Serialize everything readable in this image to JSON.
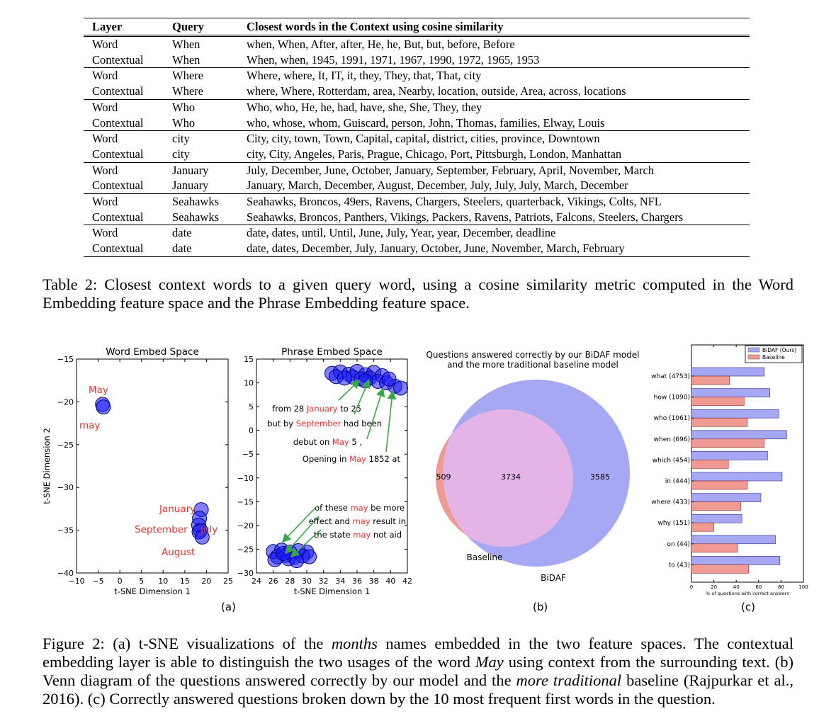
{
  "table": {
    "headers": [
      "Layer",
      "Query",
      "Closest words in the Context using cosine similarity"
    ],
    "groups": [
      [
        [
          "Word",
          "When",
          "when, When, After, after, He, he, But, but, before, Before"
        ],
        [
          "Contextual",
          "When",
          "When, when, 1945, 1991, 1971, 1967, 1990, 1972, 1965, 1953"
        ]
      ],
      [
        [
          "Word",
          "Where",
          "Where, where, It, IT, it, they, They, that, That, city"
        ],
        [
          "Contextual",
          "Where",
          "where, Where, Rotterdam, area, Nearby, location, outside, Area, across, locations"
        ]
      ],
      [
        [
          "Word",
          "Who",
          "Who, who, He, he, had, have, she, She, They, they"
        ],
        [
          "Contextual",
          "Who",
          "who, whose, whom, Guiscard, person, John, Thomas, families, Elway, Louis"
        ]
      ],
      [
        [
          "Word",
          "city",
          "City, city, town, Town, Capital, capital, district, cities, province, Downtown"
        ],
        [
          "Contextual",
          "city",
          "city, City, Angeles, Paris, Prague, Chicago, Port, Pittsburgh, London, Manhattan"
        ]
      ],
      [
        [
          "Word",
          "January",
          "July, December, June, October, January, September, February, April, November, March"
        ],
        [
          "Contextual",
          "January",
          "January, March, December, August, December, July, July, July, March, December"
        ]
      ],
      [
        [
          "Word",
          "Seahawks",
          "Seahawks, Broncos, 49ers, Ravens, Chargers, Steelers, quarterback, Vikings, Colts, NFL"
        ],
        [
          "Contextual",
          "Seahawks",
          "Seahawks, Broncos, Panthers, Vikings, Packers, Ravens, Patriots, Falcons, Steelers, Chargers"
        ]
      ],
      [
        [
          "Word",
          "date",
          "date, dates, until, Until, June, July, Year, year, December, deadline"
        ],
        [
          "Contextual",
          "date",
          "date, dates, December, July, January, October, June, November, March, February"
        ]
      ]
    ]
  },
  "table_caption": {
    "label": "Table 2:",
    "text": "Closest context words to a given query word, using a cosine similarity metric computed in the Word Embedding feature space and the Phrase Embedding feature space."
  },
  "chart_data": [
    {
      "type": "scatter",
      "title": "Word Embed Space",
      "xlabel": "t-SNE Dimension 1",
      "ylabel": "t-SNE Dimension 2",
      "xlim": [
        -10,
        25
      ],
      "ylim": [
        -40,
        -15
      ],
      "xticks": [
        "−10",
        "−5",
        "0",
        "5",
        "10",
        "15",
        "20",
        "25"
      ],
      "yticks": [
        "−15",
        "−20",
        "−25",
        "−30",
        "−35",
        "−40"
      ],
      "points": [
        {
          "x": -4,
          "y": -20.3
        },
        {
          "x": -3.8,
          "y": -20.6
        },
        {
          "x": 18.8,
          "y": -32.6
        },
        {
          "x": 18.4,
          "y": -33.6
        },
        {
          "x": 18.2,
          "y": -34.4
        },
        {
          "x": 18.6,
          "y": -35.0
        },
        {
          "x": 18.3,
          "y": -35.2
        },
        {
          "x": 19.0,
          "y": -35.8
        }
      ],
      "labels": [
        "May",
        "may",
        "January",
        "September",
        "July",
        "August"
      ]
    },
    {
      "type": "scatter",
      "title": "Phrase Embed Space",
      "xlabel": "t-SNE Dimension 1",
      "xlim": [
        24,
        42
      ],
      "ylim": [
        -30,
        15
      ],
      "xticks": [
        "24",
        "26",
        "28",
        "30",
        "32",
        "34",
        "36",
        "38",
        "40",
        "42"
      ],
      "yticks": [
        "15",
        "10",
        "5",
        "0",
        "−5",
        "−10",
        "−15",
        "−20",
        "−25",
        "−30"
      ],
      "cluster_top": [
        {
          "x": 33,
          "y": 12
        },
        {
          "x": 34,
          "y": 12.3
        },
        {
          "x": 35,
          "y": 11.8
        },
        {
          "x": 36,
          "y": 12.4
        },
        {
          "x": 37,
          "y": 11.7
        },
        {
          "x": 38,
          "y": 12.2
        },
        {
          "x": 33.5,
          "y": 11.3
        },
        {
          "x": 35.5,
          "y": 11.2
        },
        {
          "x": 37.5,
          "y": 11
        },
        {
          "x": 39,
          "y": 11.5
        },
        {
          "x": 38.5,
          "y": 10.3
        },
        {
          "x": 36.5,
          "y": 10.8
        },
        {
          "x": 34.5,
          "y": 11
        },
        {
          "x": 39.5,
          "y": 10
        },
        {
          "x": 40.5,
          "y": 9.3
        },
        {
          "x": 41.2,
          "y": 8.9
        },
        {
          "x": 37,
          "y": 10.4
        },
        {
          "x": 39.8,
          "y": 10.8
        }
      ],
      "cluster_bottom": [
        {
          "x": 26,
          "y": -25.5
        },
        {
          "x": 27,
          "y": -25.2
        },
        {
          "x": 28,
          "y": -25.6
        },
        {
          "x": 29,
          "y": -25.3
        },
        {
          "x": 30,
          "y": -25.6
        },
        {
          "x": 26.5,
          "y": -26.6
        },
        {
          "x": 27.5,
          "y": -26.3
        },
        {
          "x": 28.5,
          "y": -26.7
        },
        {
          "x": 29.5,
          "y": -26.4
        },
        {
          "x": 26.2,
          "y": -27.2
        },
        {
          "x": 27.8,
          "y": -27
        },
        {
          "x": 28.8,
          "y": -27.4
        },
        {
          "x": 30.3,
          "y": -26.6
        },
        {
          "x": 27.2,
          "y": -25.9
        }
      ],
      "phrases_top": [
        {
          "pre": "from 28 ",
          "red": "January",
          "post": " to 25"
        },
        {
          "pre": "but by ",
          "red": "September",
          "post": " had been"
        },
        {
          "pre": "debut on ",
          "red": "May",
          "post": " 5 ,"
        },
        {
          "pre": "Opening in ",
          "red": "May",
          "post": " 1852 at"
        }
      ],
      "phrases_bottom": [
        {
          "pre": "of these ",
          "red": "may",
          "post": " be more"
        },
        {
          "pre": "effect and ",
          "red": "may",
          "post": " result in"
        },
        {
          "pre": "the state ",
          "red": "may",
          "post": " not aid"
        }
      ]
    },
    {
      "type": "venn",
      "title": "Questions answered correctly by our BiDAF model",
      "title2": "and the more traditional baseline model",
      "sets": [
        "Baseline",
        "BiDAF"
      ],
      "only_baseline": "509",
      "both": "3734",
      "only_bidaf": "3585",
      "colors": {
        "baseline": "#ef9a93",
        "bidaf": "#a7a8f3",
        "overlap": "#e4b4e6"
      }
    },
    {
      "type": "bar",
      "orientation": "horizontal",
      "categories": [
        "what (4753)",
        "how (1090)",
        "who (1061)",
        "when (696)",
        "which (454)",
        "in (444)",
        "where (433)",
        "why (151)",
        "on (44)",
        "to (43)"
      ],
      "series": [
        {
          "name": "BiDAF (Ours)",
          "color": "#a7a8f3",
          "values": [
            65,
            70,
            78,
            85,
            68,
            81,
            62,
            45,
            75,
            79
          ]
        },
        {
          "name": "Baseline",
          "color": "#ef9a93",
          "values": [
            34,
            47,
            50,
            65,
            33,
            50,
            44,
            20,
            41,
            51
          ]
        }
      ],
      "xlabel": "% of questions with correct answers",
      "xlim": [
        0,
        100
      ],
      "xticks": [
        "0",
        "20",
        "40",
        "60",
        "80",
        "100"
      ]
    }
  ],
  "subfig_labels": [
    "(a)",
    "(b)",
    "(c)"
  ],
  "figure_caption": {
    "label": "Figure 2:",
    "text_html": "(a) t-SNE visualizations of the <i>months</i> names embedded in the two feature spaces. The contextual embedding layer is able to distinguish the two usages of the word <i>May</i> using context from the surrounding text. (b) Venn diagram of the questions answered correctly by our model and the <i>more traditional</i> baseline (Rajpurkar et al., 2016). (c) Correctly answered questions broken down by the 10 most frequent first words in the question."
  }
}
